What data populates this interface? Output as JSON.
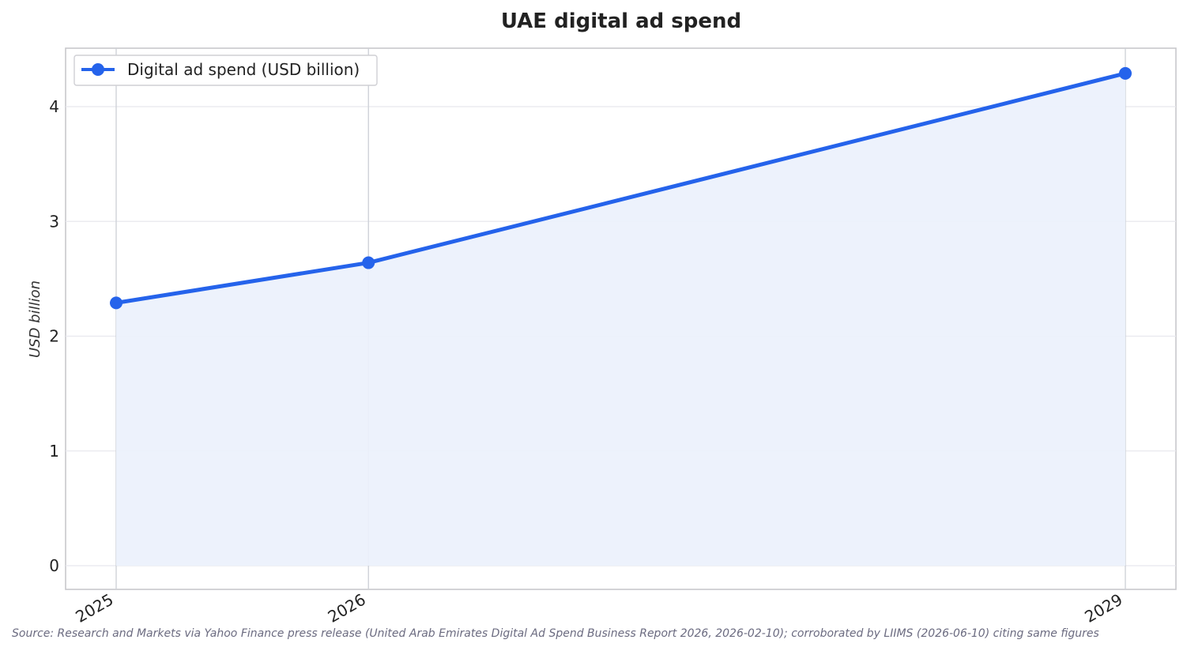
{
  "chart_data": {
    "type": "line",
    "title": "UAE digital ad spend",
    "xlabel": "",
    "ylabel": "USD billion",
    "categories": [
      "2025",
      "2026",
      "2029"
    ],
    "x": [
      2025,
      2026,
      2029
    ],
    "series": [
      {
        "name": "Digital ad spend (USD billion)",
        "values": [
          2.29,
          2.64,
          4.29
        ],
        "color": "#2563eb",
        "fill_color": "#ecf1fc"
      }
    ],
    "ylim": [
      -0.2,
      4.5
    ],
    "yticks": [
      0,
      1,
      2,
      3,
      4
    ],
    "grid": true,
    "area_fill": true,
    "legend_position": "top-left",
    "source": "Source: Research and Markets via Yahoo Finance press release (United Arab Emirates Digital Ad Spend Business Report 2026, 2026-02-10); corroborated by LIIMS (2026-06-10) citing same figures"
  }
}
